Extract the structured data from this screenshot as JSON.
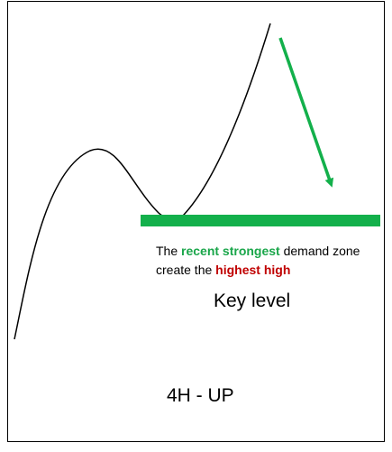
{
  "annotation": {
    "line1_prefix": "The ",
    "line1_highlight": "recent strongest",
    "line1_suffix": " demand zone",
    "line2_prefix": "create the ",
    "line2_highlight": "highest high"
  },
  "key_level_label": "Key level",
  "timeframe_label": "4H - UP",
  "colors": {
    "zone": "#13b04b",
    "arrow": "#13b04b",
    "highlight_green": "#1aa64a",
    "highlight_red": "#c00000",
    "price_line": "#000000"
  }
}
